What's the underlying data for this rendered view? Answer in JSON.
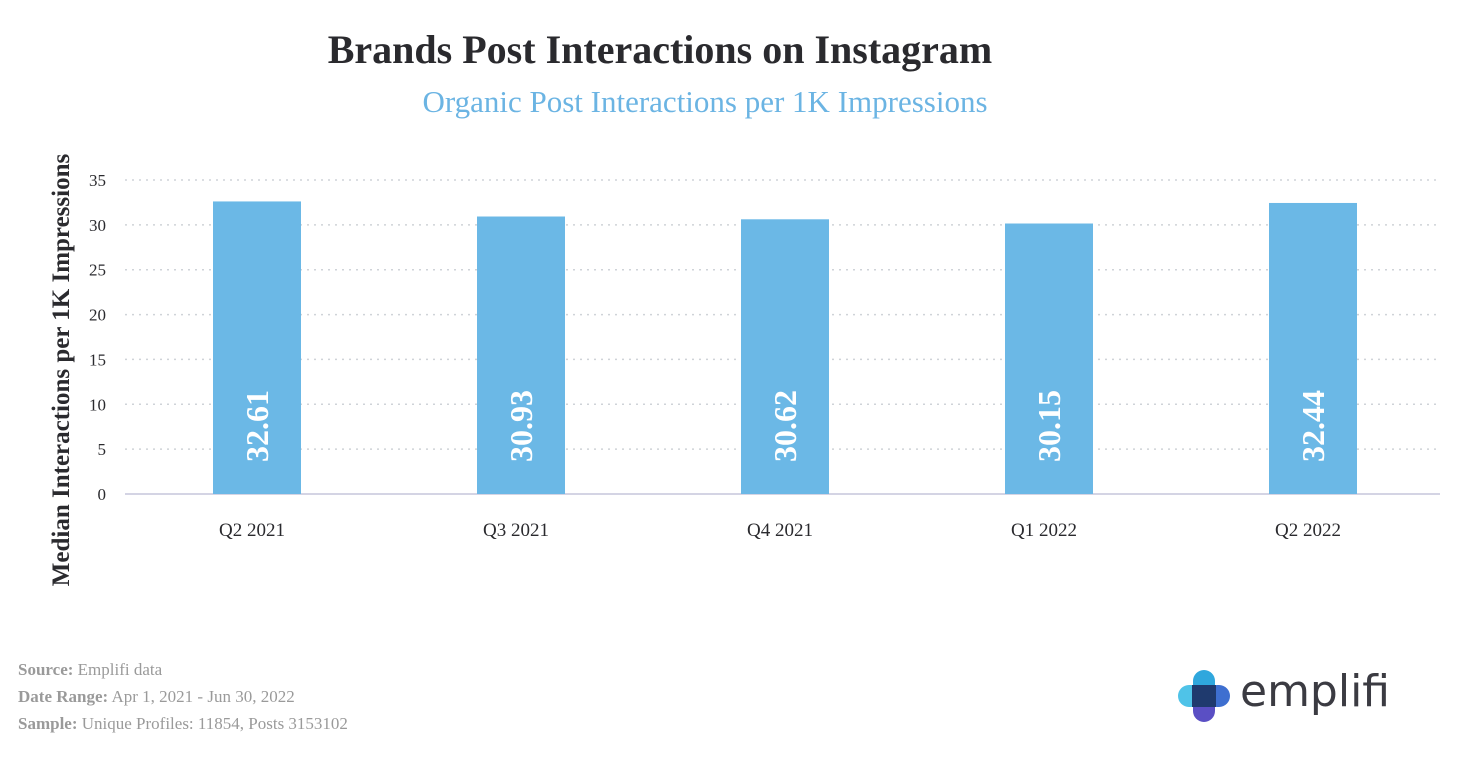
{
  "title": "Brands Post Interactions on Instagram",
  "subtitle": "Organic Post Interactions per 1K Impressions",
  "footer": {
    "source_label": "Source:",
    "source_value": "Emplifi data",
    "date_label": "Date Range:",
    "date_value": "Apr 1, 2021 - Jun 30, 2022",
    "sample_label": "Sample:",
    "sample_value": "Unique Profiles: 11854, Posts 3153102"
  },
  "logo": {
    "text": "emplifi",
    "icon": "emplifi-logo-icon"
  },
  "colors": {
    "bar": "#6bb8e6",
    "title": "#2a2a2e",
    "subtitle": "#6bb4e3",
    "grid": "#cfd3d8",
    "footer": "#9a9a9a"
  },
  "chart_data": {
    "type": "bar",
    "title": "Brands Post Interactions on Instagram",
    "subtitle": "Organic Post Interactions per 1K Impressions",
    "xlabel": "",
    "ylabel": "Median Interactions per 1K Impressions",
    "categories": [
      "Q2 2021",
      "Q3 2021",
      "Q4 2021",
      "Q1 2022",
      "Q2 2022"
    ],
    "values": [
      32.61,
      30.93,
      30.62,
      30.15,
      32.44
    ],
    "data_labels": [
      "32.61",
      "30.93",
      "30.62",
      "30.15",
      "32.44"
    ],
    "yticks": [
      "0",
      "5",
      "10",
      "15",
      "20",
      "25",
      "30",
      "35"
    ],
    "ylim": [
      0,
      35
    ],
    "grid": "horizontal dotted",
    "legend": "none"
  }
}
